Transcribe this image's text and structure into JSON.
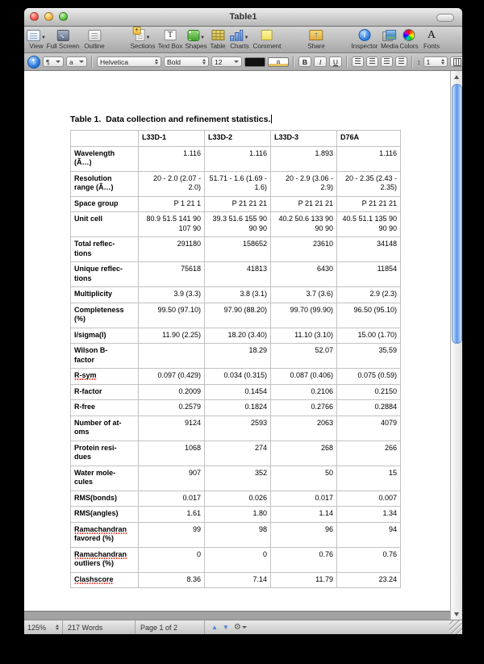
{
  "window": {
    "title": "Table1"
  },
  "toolbar": {
    "items": [
      {
        "label": "View"
      },
      {
        "label": "Full Screen"
      },
      {
        "label": "Outline"
      },
      {
        "label": "Sections"
      },
      {
        "label": "Text Box"
      },
      {
        "label": "Shapes"
      },
      {
        "label": "Table"
      },
      {
        "label": "Charts"
      },
      {
        "label": "Comment"
      },
      {
        "label": "Share"
      },
      {
        "label": "Inspector"
      },
      {
        "label": "Media"
      },
      {
        "label": "Colors"
      },
      {
        "label": "Fonts"
      }
    ]
  },
  "format_bar": {
    "paragraph_style_symbol": "¶",
    "character_style_symbol": "a",
    "font_family": "Helvetica",
    "typeface": "Bold",
    "font_size": "12",
    "highlight_symbol": "a",
    "bold_label": "B",
    "italic_label": "I",
    "underline_label": "U",
    "line_spacing_value": "1"
  },
  "document_area": {
    "caption": "Table 1.  Data collection and refinement statistics."
  },
  "table": {
    "columns": [
      "",
      "L33D-1",
      "L33D-2",
      "L33D-3",
      "D76A"
    ],
    "rows": [
      {
        "label": "Wavelength\n(Ã…)",
        "misspelled": false,
        "values": [
          "1.116",
          "1.116",
          "1.893",
          "1.116"
        ]
      },
      {
        "label": "Resolution\nrange (Ã…)",
        "misspelled": false,
        "values": [
          "20 - 2.0 (2.07 - 2.0)",
          "51.71 - 1.6 (1.69 - 1.6)",
          "20 - 2.9 (3.06 - 2.9)",
          "20 - 2.35 (2.43 - 2.35)"
        ]
      },
      {
        "label": "Space group",
        "misspelled": false,
        "values": [
          "P 1 21 1",
          "P 21 21 21",
          "P 21 21 21",
          "P 21 21 21"
        ]
      },
      {
        "label": "Unit cell",
        "misspelled": false,
        "values": [
          "80.9 51.5 141 90 107 90",
          "39.3 51.6 155 90 90 90",
          "40.2 50.6 133 90 90 90",
          "40.5 51.1 135 90 90 90"
        ]
      },
      {
        "label": "Total reflec-\ntions",
        "misspelled": false,
        "values": [
          "291180",
          "158652",
          "23610",
          "34148"
        ]
      },
      {
        "label": "Unique reflec-\ntions",
        "misspelled": false,
        "values": [
          "75618",
          "41813",
          "6430",
          "11854"
        ]
      },
      {
        "label": "Multiplicity",
        "misspelled": false,
        "values": [
          "3.9 (3.3)",
          "3.8 (3.1)",
          "3.7 (3.6)",
          "2.9 (2.3)"
        ]
      },
      {
        "label": "Completeness\n(%)",
        "misspelled": false,
        "values": [
          "99.50 (97.10)",
          "97.90 (88.20)",
          "99.70 (99.90)",
          "96.50 (95.10)"
        ]
      },
      {
        "label": "I/sigma(I)",
        "misspelled": false,
        "values": [
          "11.90 (2.25)",
          "18.20 (3.40)",
          "11.10 (3.10)",
          "15.00 (1.70)"
        ]
      },
      {
        "label": "Wilson B-\nfactor",
        "misspelled": false,
        "values": [
          "",
          "18.29",
          "52.07",
          "35.59"
        ]
      },
      {
        "label": "R-sym",
        "misspelled": true,
        "values": [
          "0.097 (0.429)",
          "0.034 (0.315)",
          "0.087 (0.406)",
          "0.075 (0.59)"
        ]
      },
      {
        "label": "R-factor",
        "misspelled": false,
        "values": [
          "0.2009",
          "0.1454",
          "0.2106",
          "0.2150"
        ]
      },
      {
        "label": "R-free",
        "misspelled": false,
        "values": [
          "0.2579",
          "0.1824",
          "0.2766",
          "0.2884"
        ]
      },
      {
        "label": "Number of at-\noms",
        "misspelled": false,
        "values": [
          "9124",
          "2593",
          "2063",
          "4079"
        ]
      },
      {
        "label": "Protein resi-\ndues",
        "misspelled": false,
        "values": [
          "1068",
          "274",
          "268",
          "266"
        ]
      },
      {
        "label": "Water mole-\ncules",
        "misspelled": false,
        "values": [
          "907",
          "352",
          "50",
          "15"
        ]
      },
      {
        "label": "RMS(bonds)",
        "misspelled": false,
        "values": [
          "0.017",
          "0.026",
          "0.017",
          "0.007"
        ]
      },
      {
        "label": "RMS(angles)",
        "misspelled": false,
        "values": [
          "1.61",
          "1.80",
          "1.14",
          "1.34"
        ]
      },
      {
        "label": "Ramachandran\nfavored (%)",
        "misspelled": true,
        "values": [
          "99",
          "98",
          "96",
          "94"
        ]
      },
      {
        "label": "Ramachandran\noutliers (%)",
        "misspelled": true,
        "values": [
          "0",
          "0",
          "0.76",
          "0.76"
        ]
      },
      {
        "label": "Clashscore",
        "misspelled": true,
        "values": [
          "8.36",
          "7.14",
          "11.79",
          "23.24"
        ]
      }
    ]
  },
  "status_bar": {
    "zoom_level": "125%",
    "word_count": "217 Words",
    "page_indicator": "Page 1 of 2"
  }
}
